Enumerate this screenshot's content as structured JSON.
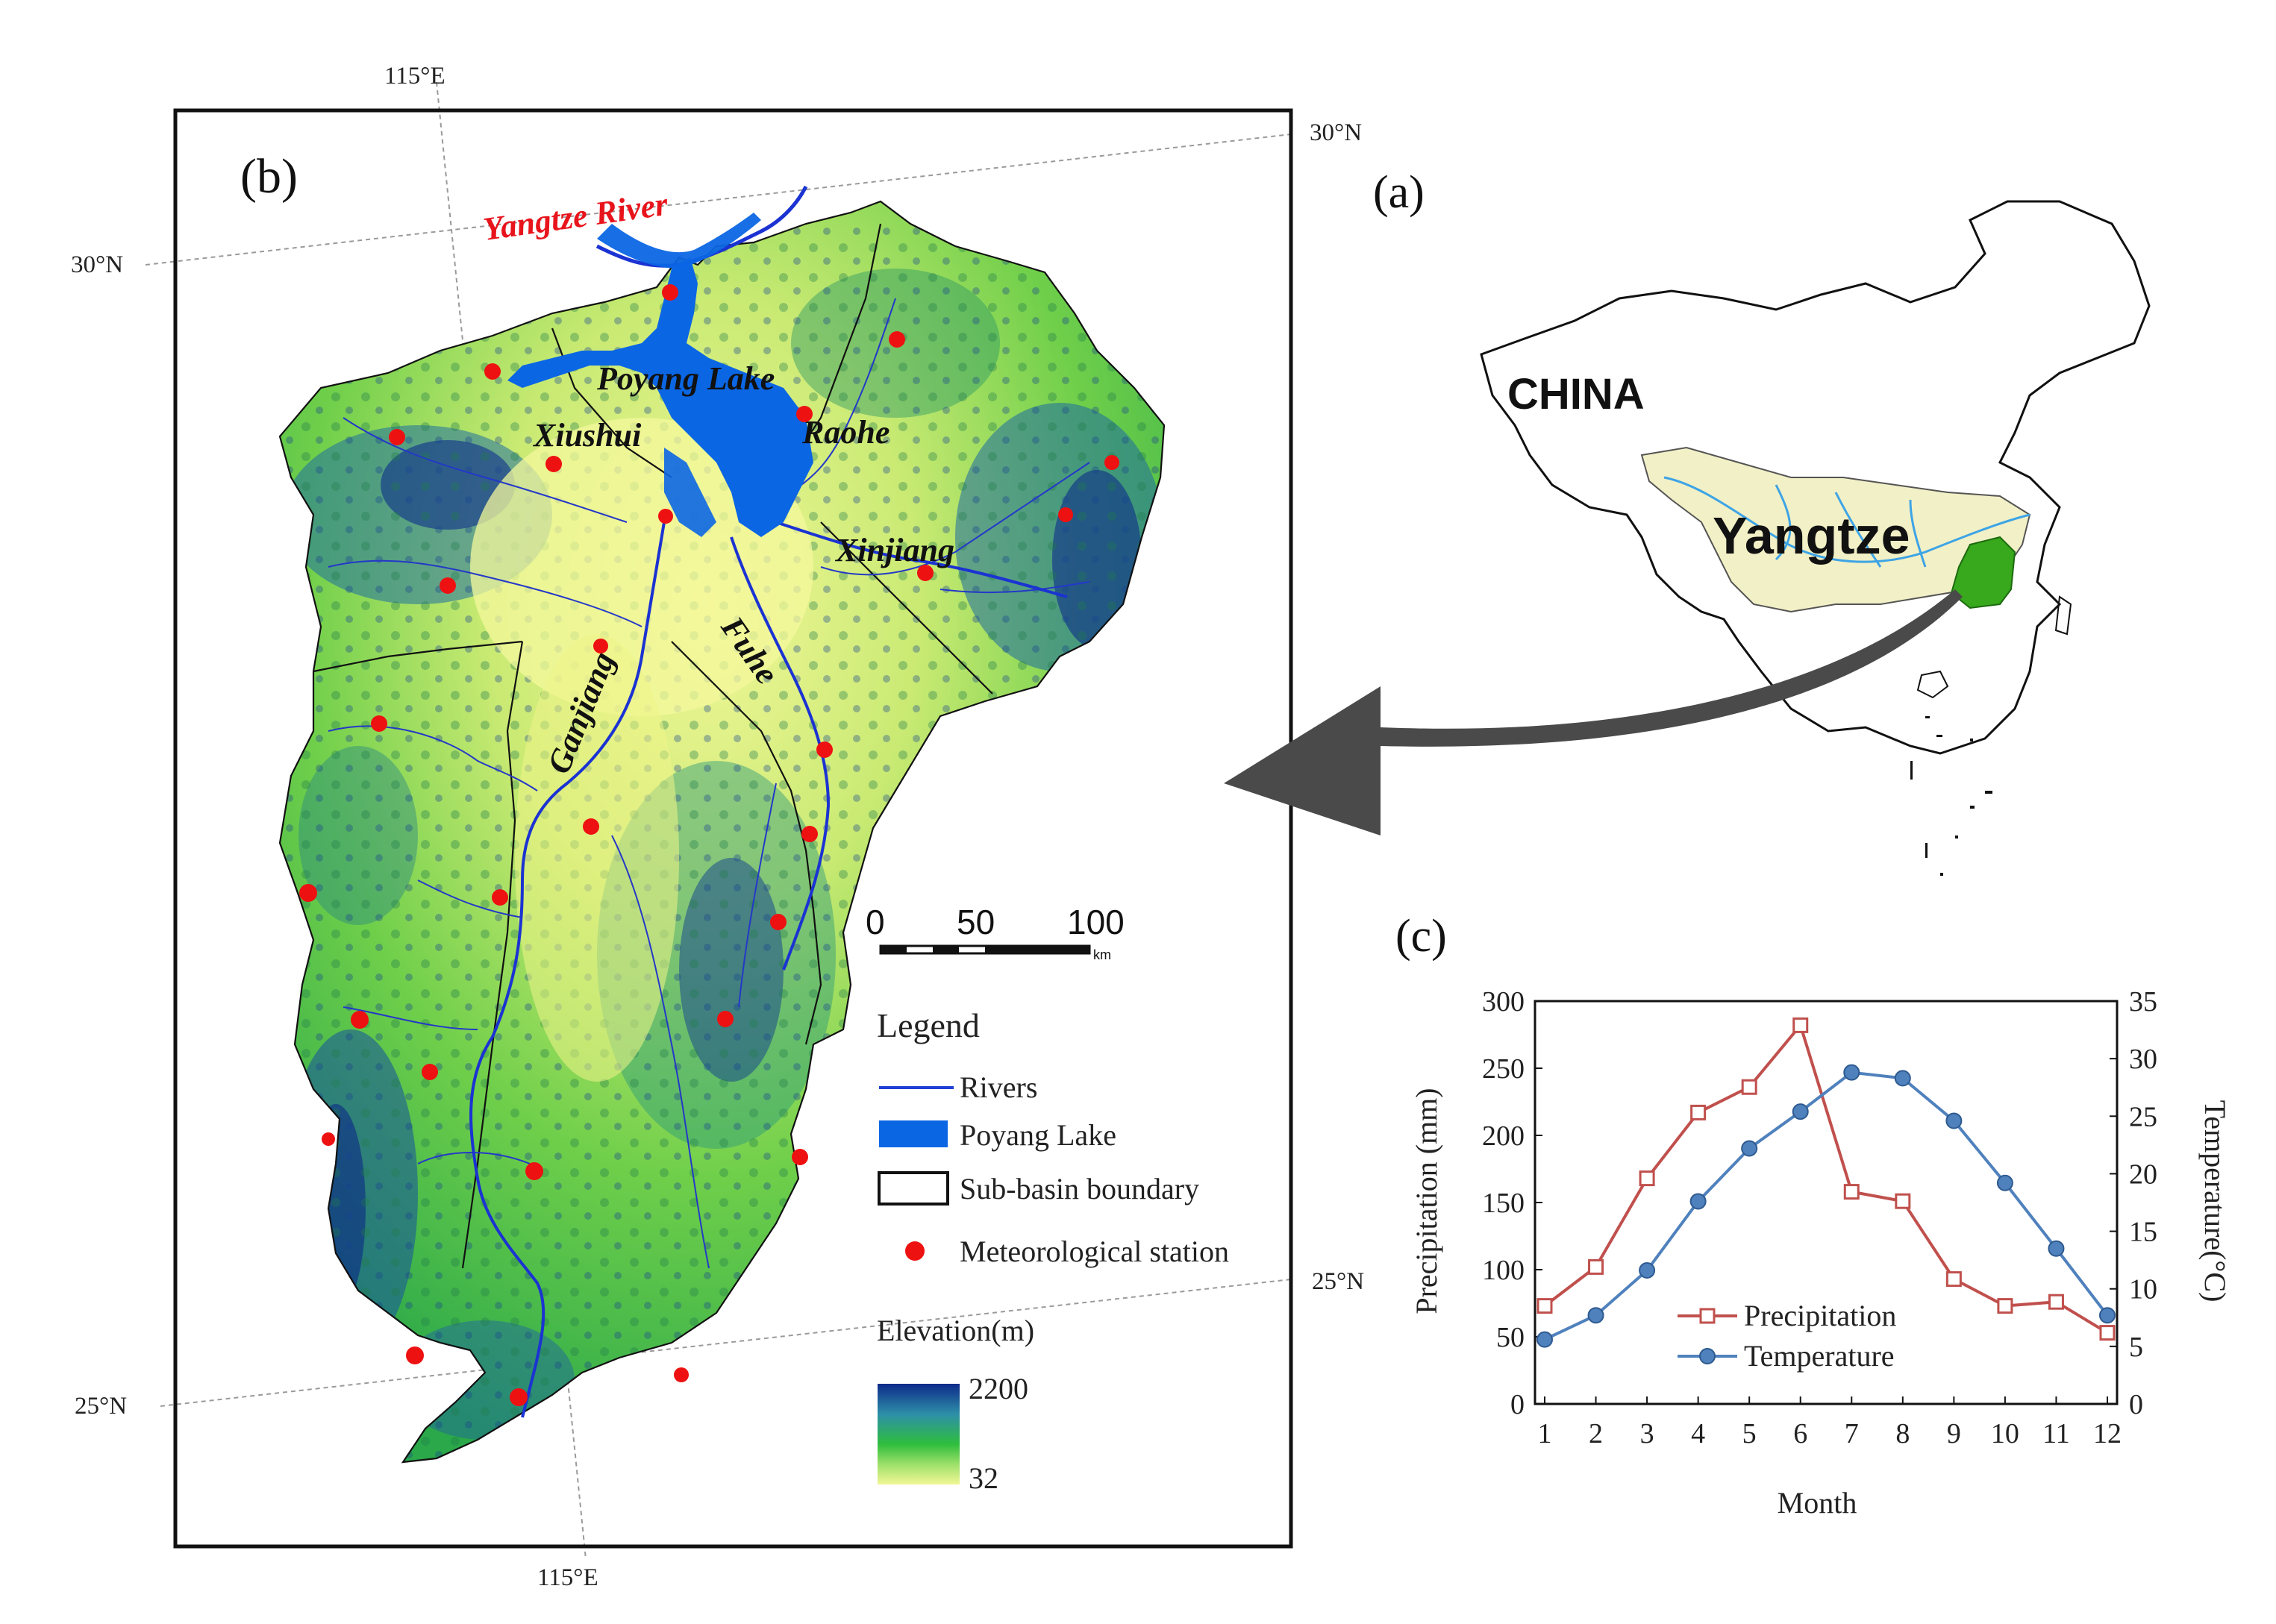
{
  "panel_b": {
    "label": "(b)",
    "coords": {
      "top": "115°E",
      "bottom": "115°E",
      "left_upper": "30°N",
      "left_lower": "25°N",
      "right_upper": "30°N",
      "right_lower": "25°N"
    },
    "map_labels": {
      "yangtze_river": "Yangtze River",
      "poyang_lake": "Poyang Lake",
      "xiushui": "Xiushui",
      "raohe": "Raohe",
      "xinjiang": "Xinjiang",
      "ganjiang": "Ganjiang",
      "fuhe": "Fuhe"
    },
    "scale_bar": {
      "ticks": [
        "0",
        "50",
        "100"
      ],
      "unit": "km"
    },
    "legend": {
      "title": "Legend",
      "items": [
        "Rivers",
        "Poyang Lake",
        "Sub-basin boundary",
        "Meteorological station"
      ],
      "elevation_title": "Elevation(m)",
      "elevation_max": "2200",
      "elevation_min": "32"
    },
    "colors": {
      "river": "#1f3fd6",
      "lake": "#0b66e4",
      "station": "#ee1111",
      "elev_low": "#f2f794",
      "elev_mid": "#2fbe3d",
      "elev_high": "#0d2a8a"
    }
  },
  "panel_a": {
    "label": "(a)",
    "country_label": "CHINA",
    "basin_label": "Yangtze",
    "colors": {
      "basin": "#f2f0c6",
      "study_area": "#38a81c",
      "arrow": "#4a4a4a"
    }
  },
  "panel_c": {
    "label": "(c)",
    "chart_data": {
      "type": "line",
      "x": [
        1,
        2,
        3,
        4,
        5,
        6,
        7,
        8,
        9,
        10,
        11,
        12
      ],
      "xlabel": "Month",
      "ylabel": "Precipitation (mm)",
      "y2label": "Temperature(°C)",
      "ylim": [
        0,
        300
      ],
      "y2lim": [
        0,
        35
      ],
      "yticks": [
        "0",
        "50",
        "100",
        "150",
        "200",
        "250",
        "300"
      ],
      "y2ticks": [
        "0",
        "5",
        "10",
        "15",
        "20",
        "25",
        "30",
        "35"
      ],
      "xticks": [
        "1",
        "2",
        "3",
        "4",
        "5",
        "6",
        "7",
        "8",
        "9",
        "10",
        "11",
        "12"
      ],
      "legend_position": "bottom-center",
      "grid": false,
      "series": [
        {
          "name": "Precipitation",
          "axis": "left",
          "color": "#c0504d",
          "marker": "open-square",
          "values": [
            73,
            102,
            168,
            217,
            236,
            282,
            158,
            151,
            93,
            73,
            76,
            53
          ]
        },
        {
          "name": "Temperature",
          "axis": "right",
          "color": "#4f81bd",
          "marker": "filled-circle",
          "values": [
            5.6,
            7.7,
            11.6,
            17.6,
            22.2,
            25.4,
            28.8,
            28.3,
            24.6,
            19.2,
            13.5,
            7.7
          ]
        }
      ]
    }
  }
}
